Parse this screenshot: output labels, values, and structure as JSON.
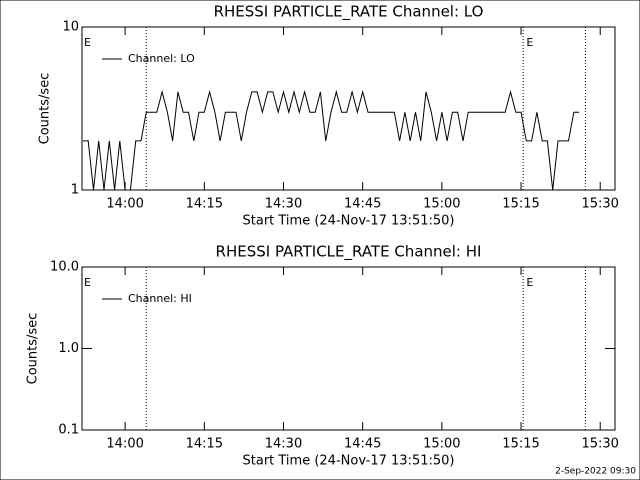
{
  "chart_data": [
    {
      "type": "line",
      "title": "RHESSI PARTICLE_RATE Channel: LO",
      "xlabel": "Start Time (24-Nov-17 13:51:50)",
      "ylabel": "Counts/sec",
      "log_y": true,
      "xlim": [
        831.83,
        932.8
      ],
      "ylim": [
        1,
        10
      ],
      "xticks": [
        {
          "value": 840,
          "label": "14:00"
        },
        {
          "value": 855,
          "label": "14:15"
        },
        {
          "value": 870,
          "label": "14:30"
        },
        {
          "value": 885,
          "label": "14:45"
        },
        {
          "value": 900,
          "label": "15:00"
        },
        {
          "value": 915,
          "label": "15:15"
        },
        {
          "value": 930,
          "label": "15:30"
        }
      ],
      "yticks": [
        1,
        10
      ],
      "event_lines": [
        844,
        915.4,
        927.2
      ],
      "annotations": [
        {
          "text": "E",
          "x": 832.2
        },
        {
          "text": "E",
          "x": 916
        }
      ],
      "series": [
        {
          "name": "Channel: LO",
          "color": "#000000",
          "x": [
            832,
            833,
            834,
            835,
            836,
            837,
            838,
            839,
            840,
            841,
            842,
            843,
            844,
            845,
            846,
            847,
            848,
            849,
            850,
            851,
            852,
            853,
            854,
            855,
            856,
            857,
            858,
            859,
            860,
            861,
            862,
            863,
            864,
            865,
            866,
            867,
            868,
            869,
            870,
            871,
            872,
            873,
            874,
            875,
            876,
            877,
            878,
            879,
            880,
            881,
            882,
            883,
            884,
            885,
            886,
            887,
            888,
            889,
            890,
            891,
            892,
            893,
            894,
            895,
            896,
            897,
            898,
            899,
            900,
            901,
            902,
            903,
            904,
            905,
            906,
            907,
            908,
            909,
            910,
            911,
            912,
            913,
            914,
            915,
            916,
            917,
            918,
            919,
            920,
            921,
            922,
            923,
            924,
            925,
            926
          ],
          "values": [
            2,
            2,
            1,
            2,
            1,
            2,
            1,
            2,
            1,
            1,
            2,
            2,
            3,
            3,
            3,
            4,
            3,
            2,
            4,
            3,
            3,
            2,
            3,
            3,
            4,
            3,
            2,
            3,
            3,
            3,
            2,
            3,
            4,
            4,
            3,
            4,
            4,
            3,
            4,
            3,
            4,
            3,
            4,
            3,
            3,
            4,
            2,
            3,
            4,
            3,
            3,
            4,
            3,
            4,
            3,
            3,
            3,
            3,
            3,
            3,
            2,
            3,
            2,
            3,
            2,
            4,
            3,
            2,
            3,
            2,
            3,
            3,
            2,
            3,
            3,
            3,
            3,
            3,
            3,
            3,
            3,
            4,
            3,
            3,
            2,
            2,
            3,
            2,
            2,
            1,
            2,
            2,
            2,
            3,
            3
          ]
        }
      ]
    },
    {
      "type": "line",
      "title": "RHESSI PARTICLE_RATE Channel: HI",
      "xlabel": "Start Time (24-Nov-17 13:51:50)",
      "ylabel": "Counts/sec",
      "log_y": true,
      "xlim": [
        831.83,
        932.8
      ],
      "ylim": [
        0.1,
        10
      ],
      "xticks": [
        {
          "value": 840,
          "label": "14:00"
        },
        {
          "value": 855,
          "label": "14:15"
        },
        {
          "value": 870,
          "label": "14:30"
        },
        {
          "value": 885,
          "label": "14:45"
        },
        {
          "value": 900,
          "label": "15:00"
        },
        {
          "value": 915,
          "label": "15:15"
        },
        {
          "value": 930,
          "label": "15:30"
        }
      ],
      "yticks": [
        0.1,
        {
          "value": 1,
          "label": "1.0"
        },
        {
          "value": 10,
          "label": "10.0"
        }
      ],
      "event_lines": [
        844,
        915.4,
        927.2
      ],
      "annotations": [
        {
          "text": "E",
          "x": 832.2
        },
        {
          "text": "E",
          "x": 916
        }
      ],
      "series": [
        {
          "name": "Channel: HI",
          "color": "#000000",
          "x": [],
          "values": []
        }
      ]
    }
  ],
  "footer": "2-Sep-2022 09:30"
}
